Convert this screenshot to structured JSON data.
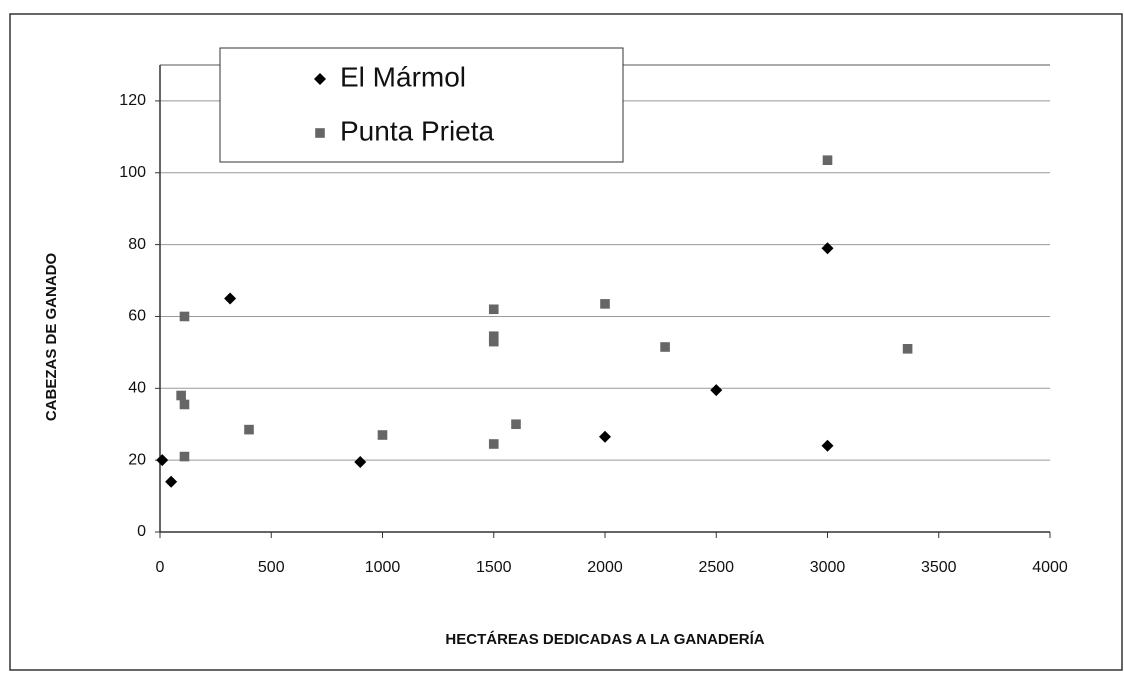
{
  "chart_data": {
    "type": "scatter",
    "x_label": "HECTÁREAS DEDICADAS A LA GANADERÍA",
    "y_label": "CABEZAS DE GANADO",
    "xlim": [
      0,
      4000
    ],
    "xticks": [
      0,
      500,
      1000,
      1500,
      2000,
      2500,
      3000,
      3500,
      4000
    ],
    "ylim": [
      0,
      130
    ],
    "yticks": [
      0,
      20,
      40,
      60,
      80,
      100,
      120
    ],
    "grid": true,
    "legend": "upper left",
    "series": [
      {
        "name": "El Mármol",
        "color": "#000000",
        "marker": "diamond",
        "x": [
          10,
          50,
          315,
          900,
          2000,
          2500,
          3000,
          3000
        ],
        "values": [
          20,
          14,
          65,
          19.5,
          26.5,
          39.5,
          79,
          24
        ]
      },
      {
        "name": "Punta Prieta",
        "color": "#666666",
        "marker": "square",
        "x": [
          110,
          95,
          110,
          110,
          400,
          1000,
          1500,
          1500,
          1500,
          1500,
          1600,
          2000,
          2270,
          3000,
          3360
        ],
        "values": [
          60,
          38,
          35.5,
          21,
          28.5,
          27,
          62,
          54.5,
          53,
          24.5,
          30,
          63.5,
          51.5,
          103.5,
          51
        ]
      }
    ]
  }
}
